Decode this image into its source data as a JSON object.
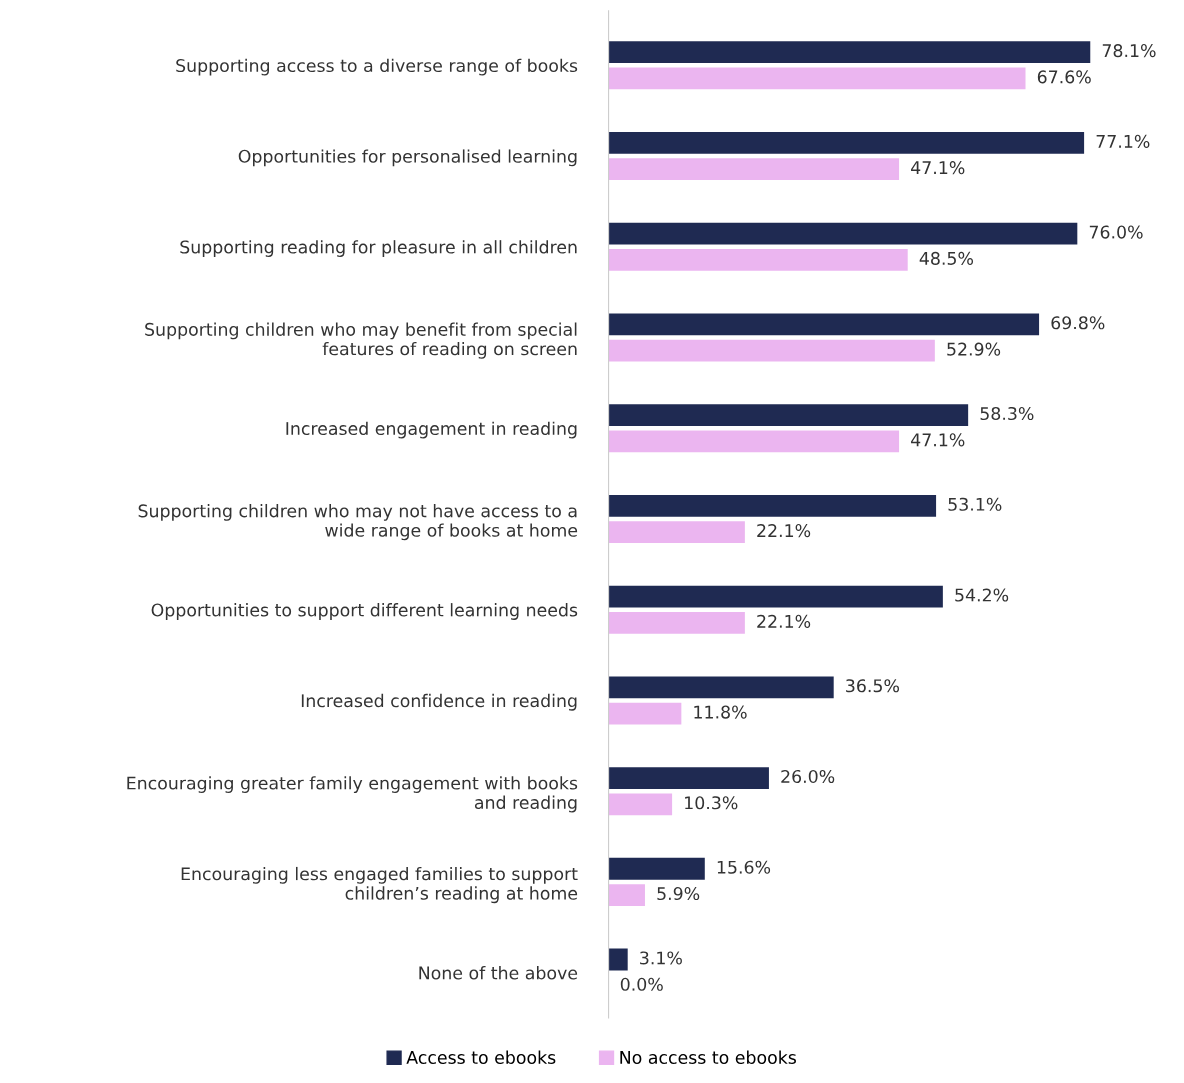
{
  "chart_data": {
    "type": "bar",
    "orientation": "horizontal",
    "categories": [
      "Supporting access to a diverse range of books",
      "Opportunities for personalised learning",
      "Supporting reading for pleasure in all children",
      "Supporting children who may benefit from special\nfeatures of reading on screen",
      "Increased engagement in reading",
      "Supporting children who may not have access to a\nwide range of books at home",
      "Opportunities to support different learning needs",
      "Increased confidence in reading",
      "Encouraging greater family engagement with books\nand reading",
      "Encouraging less engaged families to support\nchildren’s reading at home",
      "None of the above"
    ],
    "series": [
      {
        "name": "Access to ebooks",
        "color": "#1f2a52",
        "values": [
          78.1,
          77.1,
          76.0,
          69.8,
          58.3,
          53.1,
          54.2,
          36.5,
          26.0,
          15.6,
          3.1
        ],
        "value_labels": [
          "78.1%",
          "77.1%",
          "76.0%",
          "69.8%",
          "58.3%",
          "53.1%",
          "54.2%",
          "36.5%",
          "26.0%",
          "15.6%",
          "3.1%"
        ]
      },
      {
        "name": "No access to ebooks",
        "color": "#ebb5f0",
        "values": [
          67.6,
          47.1,
          48.5,
          52.9,
          47.1,
          22.1,
          22.1,
          11.8,
          10.3,
          5.9,
          0.0
        ],
        "value_labels": [
          "67.6%",
          "47.1%",
          "48.5%",
          "52.9%",
          "47.1%",
          "22.1%",
          "22.1%",
          "11.8%",
          "10.3%",
          "5.9%",
          "0.0%"
        ]
      }
    ],
    "legend": "bottom",
    "grid": false
  }
}
